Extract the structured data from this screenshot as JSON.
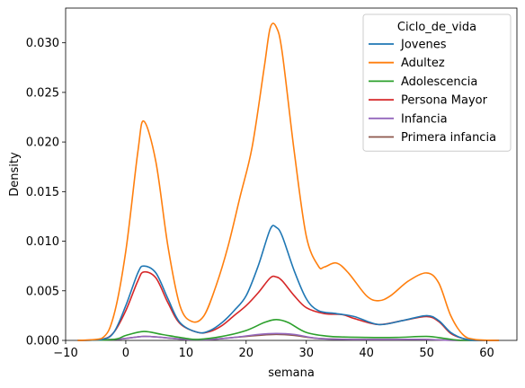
{
  "chart_data": {
    "type": "line",
    "xlabel": "semana",
    "ylabel": "Density",
    "xlim": [
      -10,
      65
    ],
    "ylim": [
      0,
      0.0335
    ],
    "xticks": [
      -10,
      0,
      10,
      20,
      30,
      40,
      50,
      60
    ],
    "yticks": [
      0.0,
      0.005,
      0.01,
      0.015,
      0.02,
      0.025,
      0.03
    ],
    "ytick_labels": [
      "0.000",
      "0.005",
      "0.010",
      "0.015",
      "0.020",
      "0.025",
      "0.030"
    ],
    "grid": false,
    "legend": {
      "title": "Ciclo_de_vida",
      "placement": "top-right"
    },
    "series": [
      {
        "name": "Jovenes",
        "color": "#1f77b4",
        "points": [
          [
            -8,
            0
          ],
          [
            -4,
            0.0001
          ],
          [
            -2,
            0.0008
          ],
          [
            0,
            0.0035
          ],
          [
            2,
            0.0068
          ],
          [
            3,
            0.0075
          ],
          [
            5,
            0.0068
          ],
          [
            7,
            0.0042
          ],
          [
            9,
            0.0018
          ],
          [
            12,
            0.0008
          ],
          [
            14,
            0.001
          ],
          [
            16,
            0.0018
          ],
          [
            18,
            0.003
          ],
          [
            20,
            0.0045
          ],
          [
            22,
            0.0075
          ],
          [
            24,
            0.0112
          ],
          [
            25,
            0.0114
          ],
          [
            26,
            0.0105
          ],
          [
            28,
            0.007
          ],
          [
            30,
            0.0042
          ],
          [
            32,
            0.003
          ],
          [
            35,
            0.0027
          ],
          [
            38,
            0.0024
          ],
          [
            42,
            0.0016
          ],
          [
            46,
            0.002
          ],
          [
            50,
            0.0025
          ],
          [
            52,
            0.002
          ],
          [
            54,
            0.0008
          ],
          [
            56,
            0.0002
          ],
          [
            58,
            0
          ],
          [
            62,
            0
          ]
        ]
      },
      {
        "name": "Adultez",
        "color": "#ff7f0e",
        "points": [
          [
            -8,
            0
          ],
          [
            -4,
            0.0002
          ],
          [
            -2,
            0.0025
          ],
          [
            0,
            0.009
          ],
          [
            2,
            0.019
          ],
          [
            3,
            0.0221
          ],
          [
            5,
            0.018
          ],
          [
            7,
            0.0095
          ],
          [
            9,
            0.0035
          ],
          [
            11,
            0.0019
          ],
          [
            13,
            0.0025
          ],
          [
            15,
            0.0055
          ],
          [
            17,
            0.0095
          ],
          [
            19,
            0.0145
          ],
          [
            21,
            0.0195
          ],
          [
            23,
            0.0275
          ],
          [
            24,
            0.0315
          ],
          [
            25,
            0.0316
          ],
          [
            26,
            0.029
          ],
          [
            28,
            0.019
          ],
          [
            30,
            0.0105
          ],
          [
            32,
            0.0075
          ],
          [
            33,
            0.0074
          ],
          [
            35,
            0.0078
          ],
          [
            37,
            0.0068
          ],
          [
            40,
            0.0045
          ],
          [
            42,
            0.004
          ],
          [
            44,
            0.0045
          ],
          [
            47,
            0.006
          ],
          [
            50,
            0.0068
          ],
          [
            52,
            0.0058
          ],
          [
            54,
            0.0025
          ],
          [
            56,
            0.0006
          ],
          [
            58,
            0.0001
          ],
          [
            62,
            0
          ]
        ]
      },
      {
        "name": "Adolescencia",
        "color": "#2ca02c",
        "points": [
          [
            -8,
            0
          ],
          [
            -2,
            0.0001
          ],
          [
            0,
            0.0005
          ],
          [
            3,
            0.0009
          ],
          [
            6,
            0.0006
          ],
          [
            10,
            0.0002
          ],
          [
            12,
            0.0001
          ],
          [
            16,
            0.0004
          ],
          [
            20,
            0.001
          ],
          [
            23,
            0.0018
          ],
          [
            25,
            0.0021
          ],
          [
            27,
            0.0018
          ],
          [
            30,
            0.0008
          ],
          [
            34,
            0.0004
          ],
          [
            40,
            0.0003
          ],
          [
            45,
            0.0003
          ],
          [
            50,
            0.0004
          ],
          [
            53,
            0.0002
          ],
          [
            56,
            0
          ],
          [
            62,
            0
          ]
        ]
      },
      {
        "name": "Persona Mayor",
        "color": "#d62728",
        "points": [
          [
            -8,
            0
          ],
          [
            -4,
            0.0001
          ],
          [
            -2,
            0.0008
          ],
          [
            0,
            0.003
          ],
          [
            2,
            0.006
          ],
          [
            3,
            0.0069
          ],
          [
            5,
            0.0063
          ],
          [
            7,
            0.0038
          ],
          [
            9,
            0.0017
          ],
          [
            12,
            0.0008
          ],
          [
            14,
            0.0009
          ],
          [
            16,
            0.0015
          ],
          [
            18,
            0.0025
          ],
          [
            20,
            0.0035
          ],
          [
            22,
            0.0048
          ],
          [
            24,
            0.0063
          ],
          [
            25,
            0.0064
          ],
          [
            26,
            0.006
          ],
          [
            28,
            0.0045
          ],
          [
            30,
            0.0033
          ],
          [
            33,
            0.0027
          ],
          [
            36,
            0.0026
          ],
          [
            38,
            0.0022
          ],
          [
            42,
            0.0016
          ],
          [
            46,
            0.002
          ],
          [
            50,
            0.0024
          ],
          [
            52,
            0.0019
          ],
          [
            54,
            0.0007
          ],
          [
            56,
            0.0002
          ],
          [
            58,
            0
          ],
          [
            62,
            0
          ]
        ]
      },
      {
        "name": "Infancia",
        "color": "#9467bd",
        "points": [
          [
            -8,
            0
          ],
          [
            -2,
            0.0001
          ],
          [
            0,
            0.0002
          ],
          [
            3,
            0.0004
          ],
          [
            6,
            0.0003
          ],
          [
            10,
            0.0001
          ],
          [
            14,
            0.0001
          ],
          [
            18,
            0.0003
          ],
          [
            22,
            0.0006
          ],
          [
            25,
            0.0007
          ],
          [
            28,
            0.0006
          ],
          [
            32,
            0.0002
          ],
          [
            38,
            0.0001
          ],
          [
            45,
            0.0001
          ],
          [
            50,
            0.0001
          ],
          [
            55,
            0
          ],
          [
            62,
            0
          ]
        ]
      },
      {
        "name": "Primera infancia",
        "color": "#8c564b",
        "points": [
          [
            -8,
            0
          ],
          [
            -2,
            0.0001
          ],
          [
            0,
            0.0002
          ],
          [
            3,
            0.0004
          ],
          [
            6,
            0.0003
          ],
          [
            10,
            0.0001
          ],
          [
            14,
            0.0001
          ],
          [
            18,
            0.0003
          ],
          [
            22,
            0.0005
          ],
          [
            25,
            0.0006
          ],
          [
            28,
            0.0005
          ],
          [
            32,
            0.0002
          ],
          [
            38,
            0.0001
          ],
          [
            45,
            0.0001
          ],
          [
            50,
            0.0001
          ],
          [
            55,
            0
          ],
          [
            62,
            0
          ]
        ]
      }
    ]
  }
}
